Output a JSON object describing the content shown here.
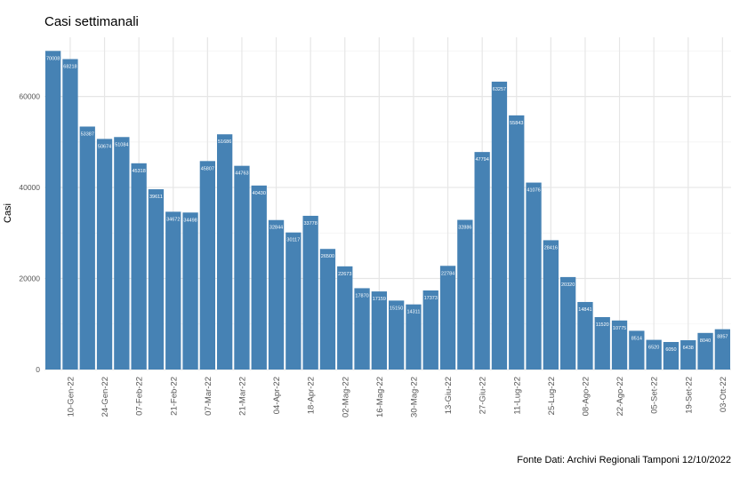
{
  "chart_data": {
    "type": "bar",
    "title": "Casi settimanali",
    "xlabel": "",
    "ylabel": "Casi",
    "caption": "Fonte Dati: Archivi Regionali Tamponi 12/10/2022",
    "ylim": [
      0,
      73000
    ],
    "y_ticks": [
      0,
      20000,
      40000,
      60000
    ],
    "x_tick_labels": [
      "10-Gen-22",
      "24-Gen-22",
      "07-Feb-22",
      "21-Feb-22",
      "07-Mar-22",
      "21-Mar-22",
      "04-Apr-22",
      "18-Apr-22",
      "02-Mag-22",
      "16-Mag-22",
      "30-Mag-22",
      "13-Giu-22",
      "27-Giu-22",
      "11-Lug-22",
      "25-Lug-22",
      "08-Ago-22",
      "22-Ago-22",
      "05-Set-22",
      "19-Set-22",
      "03-Ott-22"
    ],
    "values": [
      70008,
      68218,
      53387,
      50674,
      51084,
      45318,
      39611,
      34672,
      34498,
      45807,
      51686,
      44763,
      40430,
      32844,
      30117,
      33778,
      26500,
      22673,
      17870,
      17159,
      15150,
      14311,
      17373,
      22784,
      32886,
      47794,
      63257,
      55843,
      41076,
      28416,
      20320,
      14841,
      11520,
      10775,
      8514,
      6520,
      6050,
      6438,
      8040,
      8857
    ],
    "bar_color": "#4682b4",
    "grid": true
  }
}
